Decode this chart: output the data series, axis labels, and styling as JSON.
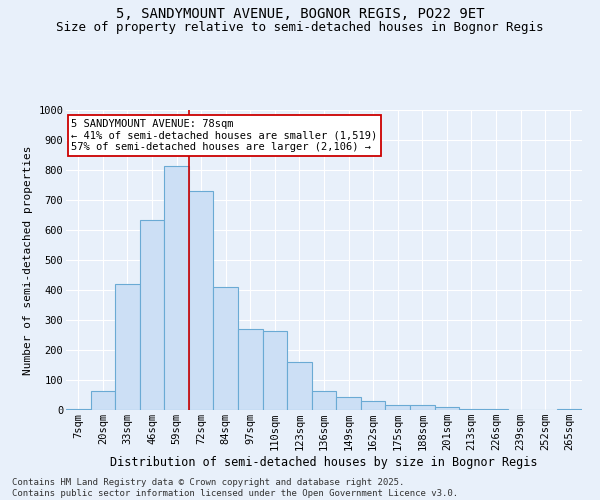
{
  "title1": "5, SANDYMOUNT AVENUE, BOGNOR REGIS, PO22 9ET",
  "title2": "Size of property relative to semi-detached houses in Bognor Regis",
  "xlabel": "Distribution of semi-detached houses by size in Bognor Regis",
  "ylabel": "Number of semi-detached properties",
  "categories": [
    "7sqm",
    "20sqm",
    "33sqm",
    "46sqm",
    "59sqm",
    "72sqm",
    "84sqm",
    "97sqm",
    "110sqm",
    "123sqm",
    "136sqm",
    "149sqm",
    "162sqm",
    "175sqm",
    "188sqm",
    "201sqm",
    "213sqm",
    "226sqm",
    "239sqm",
    "252sqm",
    "265sqm"
  ],
  "values": [
    5,
    65,
    420,
    635,
    815,
    730,
    410,
    270,
    265,
    160,
    65,
    43,
    30,
    18,
    18,
    10,
    5,
    3,
    1,
    1,
    2
  ],
  "bar_color": "#ccdff5",
  "bar_edge_color": "#6aaad4",
  "property_line_label": "5 SANDYMOUNT AVENUE: 78sqm",
  "pct_smaller": 41,
  "count_smaller": 1519,
  "pct_larger": 57,
  "count_larger": 2106,
  "annotation_box_color": "#ffffff",
  "annotation_box_edge": "#cc0000",
  "vline_color": "#cc0000",
  "vline_x_idx": 4.5,
  "background_color": "#e8f0fa",
  "grid_color": "#ffffff",
  "ylim": [
    0,
    1000
  ],
  "yticks": [
    0,
    100,
    200,
    300,
    400,
    500,
    600,
    700,
    800,
    900,
    1000
  ],
  "footer1": "Contains HM Land Registry data © Crown copyright and database right 2025.",
  "footer2": "Contains public sector information licensed under the Open Government Licence v3.0.",
  "title1_fontsize": 10,
  "title2_fontsize": 9,
  "xlabel_fontsize": 8.5,
  "ylabel_fontsize": 8,
  "tick_fontsize": 7.5,
  "annotation_fontsize": 7.5,
  "footer_fontsize": 6.5
}
